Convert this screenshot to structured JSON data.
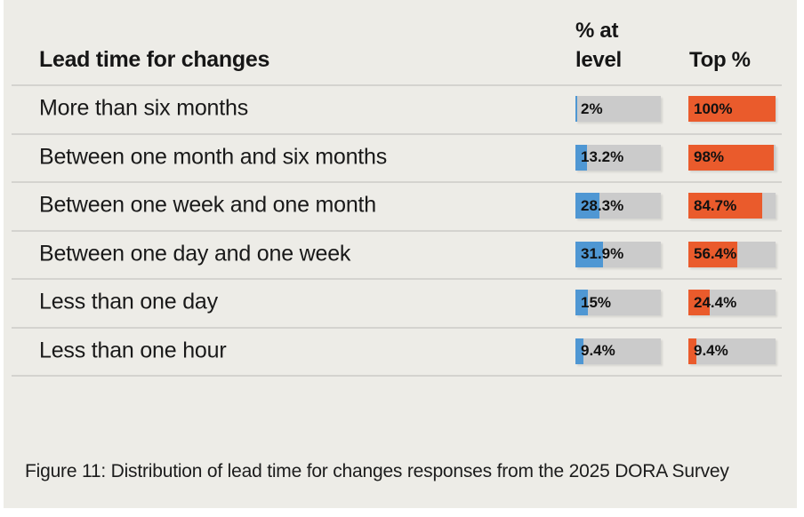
{
  "header": {
    "title": "Lead time for changes",
    "col2_line1": "% at",
    "col2_line2": "level",
    "col3": "Top %"
  },
  "caption": "Figure 11: Distribution of lead time for changes responses from the 2025 DORA Survey",
  "colors": {
    "background": "#EDECE7",
    "track": "#CBCBCB",
    "at_level_fill": "#4F97D3",
    "top_fill": "#EA5B2C",
    "divider": "#D4D3CF",
    "text": "#161616"
  },
  "chart_data": {
    "type": "bar",
    "orientation": "horizontal",
    "title": "Lead time for changes",
    "categories": [
      "More than six months",
      "Between one month and six months",
      "Between one week and one month",
      "Between one day and one week",
      "Less than one day",
      "Less than one hour"
    ],
    "series": [
      {
        "name": "% at level",
        "values": [
          2,
          13.2,
          28.3,
          31.9,
          15,
          9.4
        ],
        "labels": [
          "2%",
          "13.2%",
          "28.3%",
          "31.9%",
          "15%",
          "9.4%"
        ],
        "color": "#4F97D3"
      },
      {
        "name": "Top %",
        "values": [
          100,
          98,
          84.7,
          56.4,
          24.4,
          9.4
        ],
        "labels": [
          "100%",
          "98%",
          "84.7%",
          "56.4%",
          "24.4%",
          "9.4%"
        ],
        "color": "#EA5B2C"
      }
    ],
    "xlim": [
      0,
      100
    ],
    "grid": false,
    "legend": false,
    "value_labels_inside_bars": true,
    "source_caption": "Figure 11: Distribution of lead time for changes responses from the 2025 DORA Survey"
  }
}
